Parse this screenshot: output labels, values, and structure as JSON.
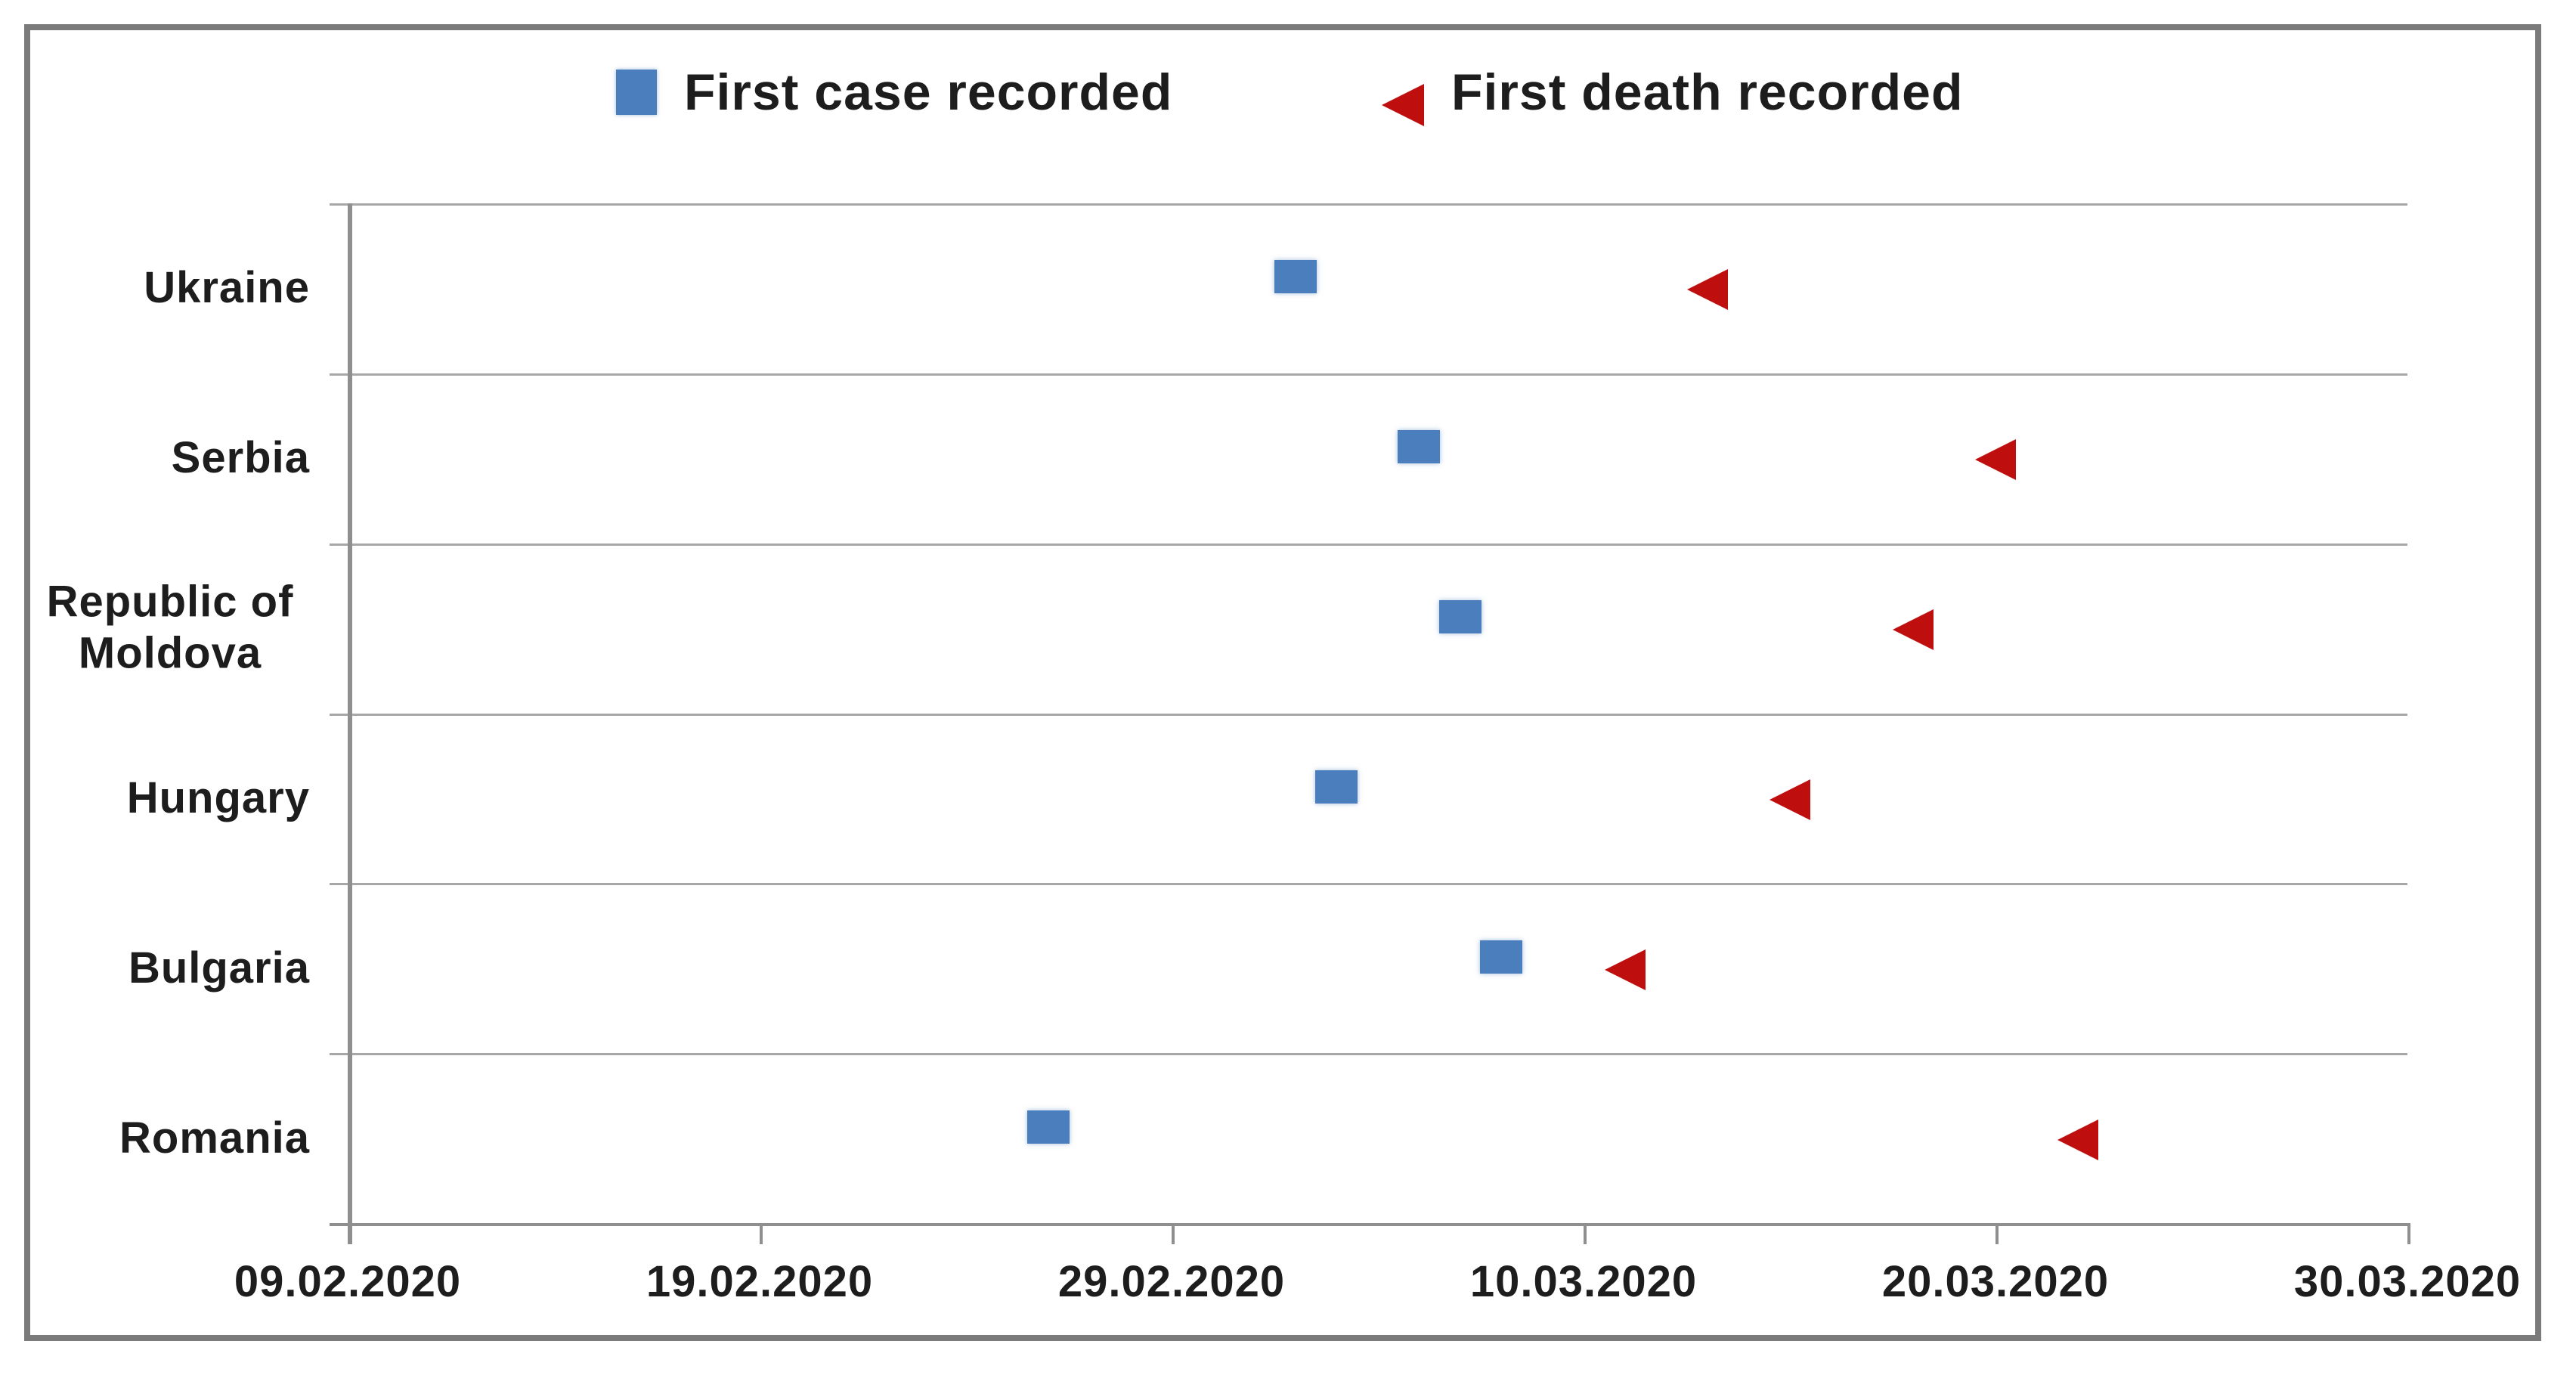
{
  "frame": {
    "border_color": "#7b7b7b",
    "background": "#ffffff"
  },
  "colors": {
    "first_case_marker": "#4a7ebc",
    "first_death_marker": "#bf0e0e",
    "gridline": "#a7a7a7",
    "axis_line": "#8f8f8f",
    "text": "#1d1d1d"
  },
  "legend": {
    "position": "top",
    "items": [
      {
        "label": "First case recorded",
        "marker": "blue-square"
      },
      {
        "label": "First death recorded",
        "marker": "red-left-triangle"
      }
    ]
  },
  "chart_data": {
    "type": "scatter",
    "orientation": "horizontal-category-timeline",
    "title": "",
    "xlabel": "",
    "ylabel": "",
    "grid": "horizontal",
    "legend_position": "top",
    "categories": [
      "Ukraine",
      "Serbia",
      "Republic of Moldova",
      "Hungary",
      "Bulgaria",
      "Romania"
    ],
    "series": [
      {
        "name": "First case recorded",
        "marker": "square",
        "color": "#4a7ebc",
        "values": [
          "03.03.2020",
          "06.03.2020",
          "07.03.2020",
          "04.03.2020",
          "08.03.2020",
          "26.02.2020"
        ]
      },
      {
        "name": "First death recorded",
        "marker": "triangle-left",
        "color": "#bf0e0e",
        "values": [
          "13.03.2020",
          "20.03.2020",
          "18.03.2020",
          "15.03.2020",
          "11.03.2020",
          "22.03.2020"
        ]
      }
    ],
    "x_axis": {
      "min": "09.02.2020",
      "max": "30.03.2020",
      "tick_labels": [
        "09.02.2020",
        "19.02.2020",
        "29.02.2020",
        "10.03.2020",
        "20.03.2020",
        "30.03.2020"
      ],
      "date_format": "DD.MM.YYYY"
    }
  }
}
